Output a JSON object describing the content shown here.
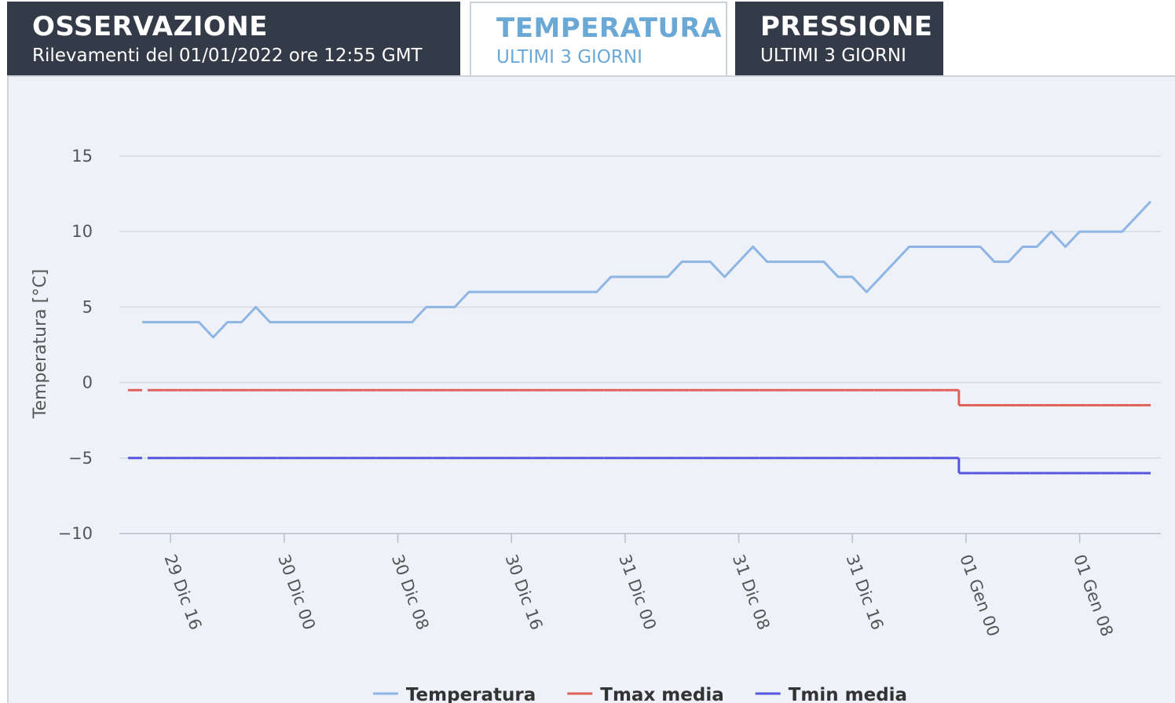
{
  "tabs": [
    {
      "title": "OSSERVAZIONE",
      "subtitle": "Rilevamenti del 01/01/2022 ore 12:55 GMT"
    },
    {
      "title": "TEMPERATURA",
      "subtitle": "ULTIMI 3 GIORNI"
    },
    {
      "title": "PRESSIONE",
      "subtitle": "ULTIMI 3 GIORNI"
    }
  ],
  "chart_data": {
    "type": "line",
    "y_label": "Temperatura [°C]",
    "categories": [
      null,
      null,
      "29 Dic 16",
      null,
      null,
      null,
      null,
      null,
      null,
      null,
      "30 Dic 00",
      null,
      null,
      null,
      null,
      null,
      null,
      null,
      "30 Dic 08",
      null,
      null,
      null,
      null,
      null,
      null,
      null,
      "30 Dic 16",
      null,
      null,
      null,
      null,
      null,
      null,
      null,
      "31 Dic 00",
      null,
      null,
      null,
      null,
      null,
      null,
      null,
      "31 Dic 08",
      null,
      null,
      null,
      null,
      null,
      null,
      null,
      "31 Dic 16",
      null,
      null,
      null,
      null,
      null,
      null,
      null,
      "01 Gen 00",
      null,
      null,
      null,
      null,
      null,
      null,
      null,
      "01 Gen 08",
      null,
      null,
      null,
      null,
      null
    ],
    "series": [
      {
        "name": "Temperatura",
        "color": "#8fb5e3",
        "values": [
          4,
          4,
          4,
          4,
          4,
          3,
          4,
          4,
          5,
          4,
          4,
          4,
          4,
          4,
          4,
          4,
          4,
          4,
          4,
          4,
          5,
          5,
          5,
          6,
          6,
          6,
          6,
          6,
          6,
          6,
          6,
          6,
          6,
          7,
          7,
          7,
          7,
          7,
          8,
          8,
          8,
          7,
          8,
          9,
          8,
          8,
          8,
          8,
          8,
          7,
          7,
          6,
          7,
          8,
          9,
          9,
          9,
          9,
          9,
          9,
          8,
          8,
          9,
          9,
          10,
          9,
          10,
          10,
          10,
          10,
          11,
          12
        ]
      },
      {
        "name": "Tmax media",
        "color": "#e0605a",
        "step": true,
        "values": [
          -0.5,
          -0.5,
          -0.5,
          -0.5,
          -0.5,
          -0.5,
          -0.5,
          -0.5,
          -0.5,
          -0.5,
          -0.5,
          -0.5,
          -0.5,
          -0.5,
          -0.5,
          -0.5,
          -0.5,
          -0.5,
          -0.5,
          -0.5,
          -0.5,
          -0.5,
          -0.5,
          -0.5,
          -0.5,
          -0.5,
          -0.5,
          -0.5,
          -0.5,
          -0.5,
          -0.5,
          -0.5,
          -0.5,
          -0.5,
          -0.5,
          -0.5,
          -0.5,
          -0.5,
          -0.5,
          -0.5,
          -0.5,
          -0.5,
          -0.5,
          -0.5,
          -0.5,
          -0.5,
          -0.5,
          -0.5,
          -0.5,
          -0.5,
          -0.5,
          -0.5,
          -0.5,
          -0.5,
          -0.5,
          -0.5,
          -0.5,
          -0.5,
          -1.5,
          -1.5,
          -1.5,
          -1.5,
          -1.5,
          -1.5,
          -1.5,
          -1.5,
          -1.5,
          -1.5,
          -1.5,
          -1.5,
          -1.5,
          -1.5
        ]
      },
      {
        "name": "Tmin media",
        "color": "#5555e0",
        "step": true,
        "values": [
          -5,
          -5,
          -5,
          -5,
          -5,
          -5,
          -5,
          -5,
          -5,
          -5,
          -5,
          -5,
          -5,
          -5,
          -5,
          -5,
          -5,
          -5,
          -5,
          -5,
          -5,
          -5,
          -5,
          -5,
          -5,
          -5,
          -5,
          -5,
          -5,
          -5,
          -5,
          -5,
          -5,
          -5,
          -5,
          -5,
          -5,
          -5,
          -5,
          -5,
          -5,
          -5,
          -5,
          -5,
          -5,
          -5,
          -5,
          -5,
          -5,
          -5,
          -5,
          -5,
          -5,
          -5,
          -5,
          -5,
          -5,
          -5,
          -6,
          -6,
          -6,
          -6,
          -6,
          -6,
          -6,
          -6,
          -6,
          -6,
          -6,
          -6,
          -6,
          -6
        ]
      }
    ],
    "ylim": [
      -10,
      15
    ],
    "yticks": [
      {
        "value": -10,
        "label": "−10"
      },
      {
        "value": -5,
        "label": "−5"
      },
      0,
      5,
      10,
      15
    ],
    "grid": true,
    "legend": "bottom"
  }
}
